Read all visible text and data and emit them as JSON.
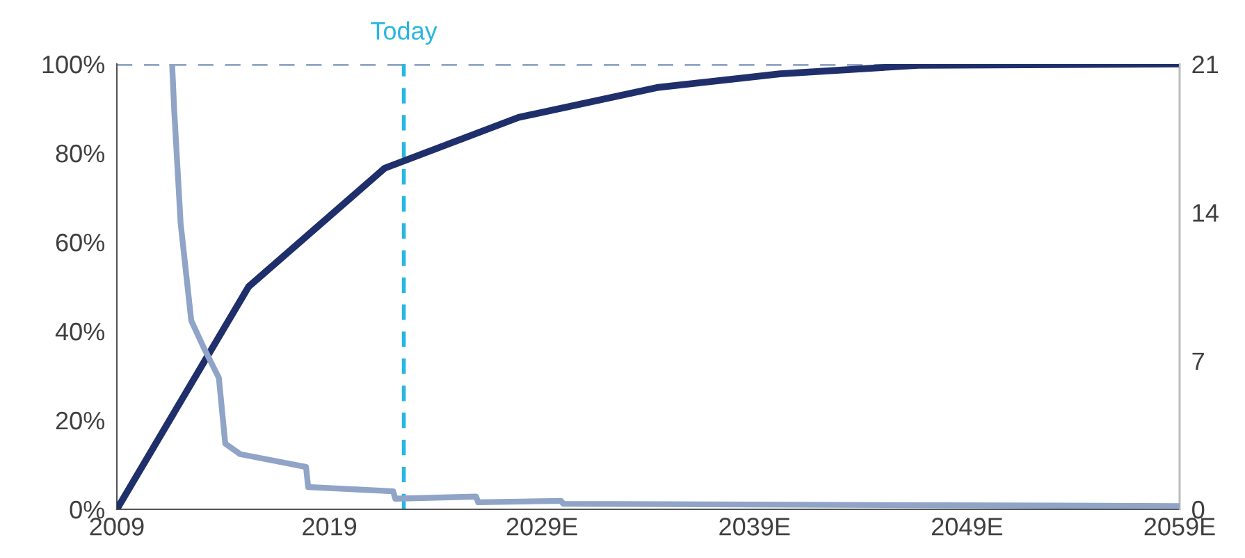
{
  "chart_data": {
    "type": "line",
    "xlim": [
      2009,
      2059
    ],
    "ylim": [
      0,
      100
    ],
    "y2lim": [
      0,
      21
    ],
    "xticks": [
      2009,
      2019,
      {
        "value": 2029,
        "label": "2029E"
      },
      {
        "value": 2039,
        "label": "2039E"
      },
      {
        "value": 2049,
        "label": "2049E"
      },
      {
        "value": 2059,
        "label": "2059E"
      }
    ],
    "yticks": [
      {
        "value": 0,
        "label": "0%"
      },
      {
        "value": 20,
        "label": "20%"
      },
      {
        "value": 40,
        "label": "40%"
      },
      {
        "value": 60,
        "label": "60%"
      },
      {
        "value": 80,
        "label": "80%"
      },
      {
        "value": 100,
        "label": "100%"
      }
    ],
    "y2ticks": [
      0,
      7,
      14,
      21
    ],
    "series": [
      {
        "color": "#1f2f6b",
        "x": [
          2009,
          2015.2,
          2021.6,
          2027.9,
          2034.4,
          2040.2,
          2046.7,
          2059
        ],
        "values": [
          0,
          50,
          76.6,
          88,
          94.7,
          97.8,
          99.7,
          100
        ]
      },
      {
        "color": "#8fa4c6",
        "axis": "y2",
        "x": [
          2011.6,
          2011.7,
          2012.0,
          2012.5,
          2013.1,
          2013.8,
          2014.1,
          2014.8,
          2017.9,
          2018.0,
          2022.0,
          2022.1,
          2025.9,
          2026.0,
          2029.9,
          2030.0,
          2059
        ],
        "values": [
          21,
          18.8,
          13.5,
          8.9,
          7.6,
          6.2,
          3.1,
          2.6,
          2.0,
          1.05,
          0.85,
          0.5,
          0.6,
          0.33,
          0.4,
          0.26,
          0.15
        ]
      }
    ],
    "ref_lines": [
      {
        "axis": "x",
        "value": 2022.5,
        "label": "Today",
        "color": "#29b6e0",
        "line_style": "dashed"
      },
      {
        "axis": "y",
        "value": 100,
        "color": "#8fa4c6",
        "line_style": "dashed"
      }
    ],
    "grid": false,
    "legend": false
  }
}
